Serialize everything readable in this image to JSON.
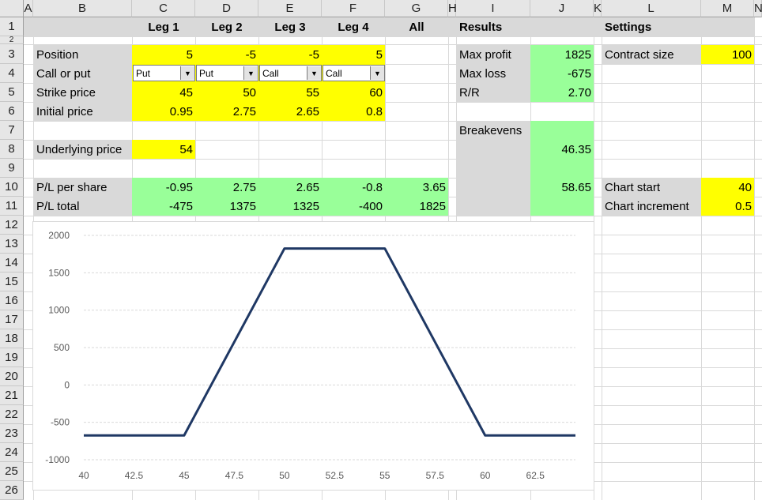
{
  "sheet": {
    "columns": [
      "A",
      "B",
      "C",
      "D",
      "E",
      "F",
      "G",
      "H",
      "I",
      "J",
      "K",
      "L",
      "M",
      "N"
    ],
    "rows": [
      "1",
      "2",
      "3",
      "4",
      "5",
      "6",
      "7",
      "8",
      "9",
      "10",
      "11",
      "12",
      "13",
      "14",
      "15",
      "16",
      "17",
      "18",
      "19",
      "20",
      "21",
      "22",
      "23",
      "24",
      "25",
      "26"
    ]
  },
  "header_row": {
    "leg1": "Leg 1",
    "leg2": "Leg 2",
    "leg3": "Leg 3",
    "leg4": "Leg 4",
    "all": "All",
    "results": "Results",
    "settings": "Settings"
  },
  "legs": {
    "position_label": "Position",
    "type_label": "Call or put",
    "strike_label": "Strike price",
    "initial_label": "Initial price",
    "positions": [
      "5",
      "-5",
      "-5",
      "5"
    ],
    "types": [
      "Put",
      "Put",
      "Call",
      "Call"
    ],
    "strikes": [
      "45",
      "50",
      "55",
      "60"
    ],
    "initial_prices": [
      "0.95",
      "2.75",
      "2.65",
      "0.8"
    ]
  },
  "underlying": {
    "label": "Underlying price",
    "value": "54"
  },
  "pl": {
    "per_share_label": "P/L per share",
    "total_label": "P/L total",
    "per_share": [
      "-0.95",
      "2.75",
      "2.65",
      "-0.8",
      "3.65"
    ],
    "total": [
      "-475",
      "1375",
      "1325",
      "-400",
      "1825"
    ]
  },
  "results": {
    "max_profit_label": "Max profit",
    "max_profit": "1825",
    "max_loss_label": "Max loss",
    "max_loss": "-675",
    "rr_label": "R/R",
    "rr": "2.70",
    "breakevens_label": "Breakevens",
    "breakeven_1": "46.35",
    "breakeven_2": "58.65"
  },
  "settings": {
    "contract_size_label": "Contract size",
    "contract_size": "100",
    "chart_start_label": "Chart start",
    "chart_start": "40",
    "chart_increment_label": "Chart increment",
    "chart_increment": "0.5"
  },
  "colors": {
    "input": "#ffff00",
    "output": "#99ff99",
    "label": "#d9d9d9",
    "line": "#1f3864"
  },
  "chart_data": {
    "type": "line",
    "title": "",
    "xlabel": "",
    "ylabel": "",
    "x_tick_labels": [
      "40",
      "42.5",
      "45",
      "47.5",
      "50",
      "52.5",
      "55",
      "57.5",
      "60",
      "62.5"
    ],
    "y_tick_labels": [
      "2000",
      "1500",
      "1000",
      "500",
      "0",
      "-500",
      "-1000"
    ],
    "ylim": [
      -1000,
      2000
    ],
    "xlim": [
      40,
      64.5
    ],
    "grid": "horizontal",
    "legend": "none",
    "series": [
      {
        "x": [
          40,
          45,
          50,
          55,
          60,
          64.5
        ],
        "values": [
          -675,
          -675,
          1825,
          1825,
          -675,
          -675
        ]
      }
    ]
  }
}
